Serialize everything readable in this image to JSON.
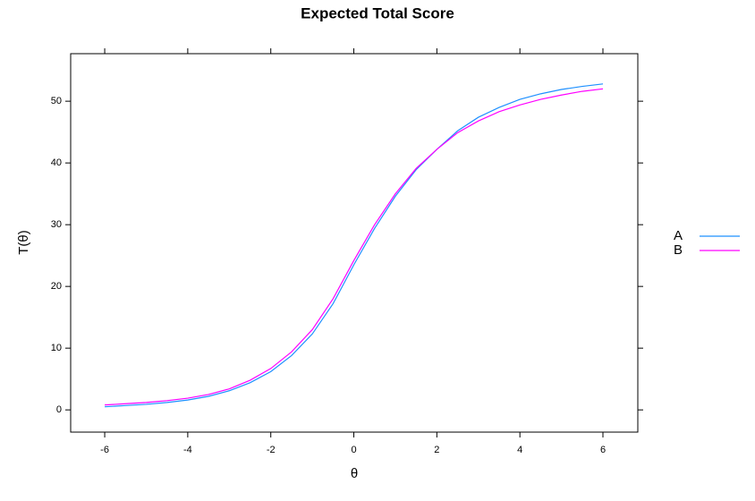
{
  "chart_data": {
    "type": "line",
    "title": "Expected Total Score",
    "x_label": "θ",
    "y_label": "T(θ)",
    "x": [
      -6,
      -5.5,
      -5,
      -4.5,
      -4,
      -3.5,
      -3,
      -2.5,
      -2,
      -1.5,
      -1,
      -0.5,
      0,
      0.5,
      1,
      1.5,
      2,
      2.5,
      3,
      3.5,
      4,
      4.5,
      5,
      5.5,
      6
    ],
    "series": [
      {
        "name": "A",
        "color": "#1e90ff",
        "values": [
          0.5,
          0.7,
          0.9,
          1.2,
          1.6,
          2.2,
          3.1,
          4.4,
          6.2,
          8.8,
          12.3,
          17.2,
          23.5,
          29.4,
          34.6,
          38.9,
          42.2,
          45.2,
          47.4,
          49.0,
          50.3,
          51.2,
          51.9,
          52.4,
          52.8
        ]
      },
      {
        "name": "B",
        "color": "#ff00ff",
        "values": [
          0.8,
          1.0,
          1.2,
          1.5,
          1.9,
          2.5,
          3.4,
          4.8,
          6.7,
          9.4,
          13.0,
          18.0,
          24.2,
          30.0,
          35.0,
          39.1,
          42.2,
          44.9,
          46.8,
          48.3,
          49.4,
          50.3,
          51.0,
          51.6,
          52.0
        ]
      }
    ],
    "xlim": [
      -6.82,
      6.84
    ],
    "ylim": [
      -3.6,
      57.7
    ],
    "xticks": [
      -6,
      -4,
      -2,
      0,
      2,
      4,
      6
    ],
    "yticks": [
      0,
      10,
      20,
      30,
      40,
      50
    ],
    "legend": "right"
  }
}
